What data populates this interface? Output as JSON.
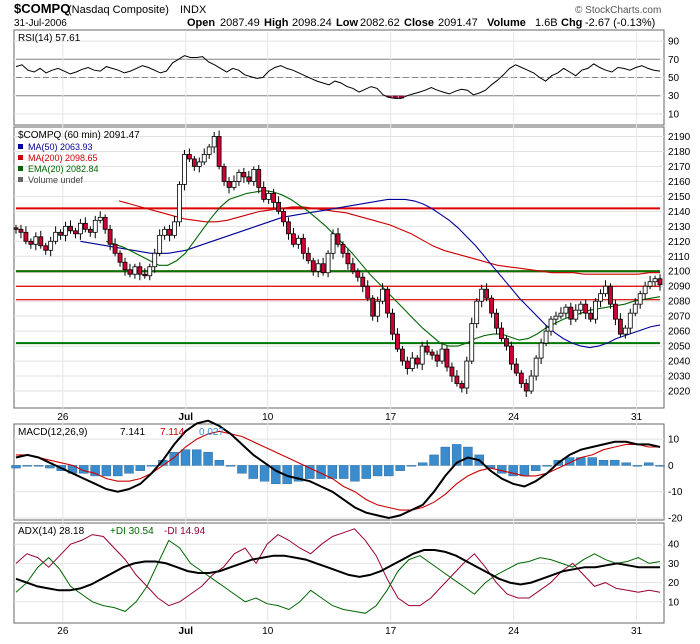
{
  "header": {
    "symbol": "$COMPQ",
    "name": "(Nasdaq Composite)",
    "exchange": "INDX",
    "date": "31-Jul-2006",
    "open_label": "Open",
    "open": "2087.49",
    "high_label": "High",
    "high": "2098.24",
    "low_label": "Low",
    "low": "2082.62",
    "close_label": "Close",
    "close": "2091.47",
    "volume_label": "Volume",
    "volume": "1.6B",
    "chg_label": "Chg",
    "chg": "-2.67 (-0.13%)",
    "copyright": "© StockCharts.com"
  },
  "colors": {
    "up_candle": "#ffffff",
    "down_candle": "#cc0033",
    "ma50": "#000099",
    "ma200": "#cc0000",
    "ema20": "#006600",
    "support_red": "#dd0000",
    "support_green": "#007700",
    "macd_hist": "#3a8ccc",
    "macd_line": "#000000",
    "macd_signal": "#cc0000",
    "adx": "#000000",
    "plus_di": "#006600",
    "minus_di": "#990033",
    "rsi_line": "#000000",
    "rsi_over": "#990033"
  },
  "chart_data": [
    {
      "type": "line",
      "panel": "rsi",
      "legend": "RSI(14) 57.61",
      "ylim": [
        0,
        100
      ],
      "yticks": [
        "90",
        "70",
        "50",
        "30",
        "10"
      ],
      "reference_lines": [
        70,
        50,
        30
      ],
      "last_value": 57.61,
      "values": [
        62,
        64,
        58,
        56,
        60,
        55,
        58,
        60,
        57,
        54,
        56,
        59,
        61,
        58,
        57,
        62,
        60,
        58,
        55,
        57,
        60,
        63,
        61,
        58,
        55,
        57,
        66,
        70,
        74,
        72,
        72,
        73,
        67,
        64,
        60,
        56,
        60,
        58,
        53,
        51,
        49,
        50,
        57,
        61,
        63,
        60,
        58,
        55,
        52,
        49,
        46,
        44,
        42,
        46,
        44,
        40,
        38,
        34,
        37,
        40,
        38,
        31,
        28,
        27,
        27,
        30,
        32,
        34,
        36,
        39,
        36,
        34,
        32,
        35,
        37,
        36,
        31,
        33,
        36,
        42,
        47,
        53,
        60,
        64,
        61,
        58,
        55,
        50,
        46,
        52,
        55,
        60,
        56,
        52,
        58,
        60,
        65,
        61,
        58,
        56,
        61,
        60,
        58,
        61,
        63,
        60,
        58,
        57
      ]
    },
    {
      "type": "line",
      "panel": "price",
      "legend": [
        "$COMPQ (60 min) 2091.47",
        "MA(50) 2063.93",
        "MA(200) 2098.65",
        "EMA(20) 2082.84",
        "Volume undef"
      ],
      "ylim": [
        2010,
        2195
      ],
      "yticks": [
        "2190",
        "2180",
        "2170",
        "2160",
        "2150",
        "2140",
        "2130",
        "2120",
        "2110",
        "2100",
        "2090",
        "2080",
        "2070",
        "2060",
        "2050",
        "2040",
        "2030",
        "2020"
      ],
      "x_tick_labels": [
        {
          "label": "26",
          "index": 8
        },
        {
          "label": "Jul",
          "index": 29
        },
        {
          "label": "10",
          "index": 43
        },
        {
          "label": "17",
          "index": 64
        },
        {
          "label": "24",
          "index": 85
        },
        {
          "label": "31",
          "index": 106
        }
      ],
      "horizontal_lines": [
        {
          "value": 2142,
          "color": "red"
        },
        {
          "value": 2100,
          "color": "red"
        },
        {
          "value": 2100,
          "color": "green"
        },
        {
          "value": 2090,
          "color": "red"
        },
        {
          "value": 2081,
          "color": "red"
        },
        {
          "value": 2052,
          "color": "red"
        },
        {
          "value": 2052,
          "color": "green"
        }
      ],
      "close": [
        2128,
        2126,
        2120,
        2118,
        2123,
        2117,
        2114,
        2120,
        2126,
        2124,
        2130,
        2127,
        2125,
        2132,
        2128,
        2126,
        2134,
        2136,
        2128,
        2118,
        2112,
        2106,
        2101,
        2098,
        2103,
        2098,
        2097,
        2103,
        2112,
        2124,
        2128,
        2124,
        2133,
        2158,
        2178,
        2175,
        2170,
        2173,
        2178,
        2183,
        2190,
        2170,
        2160,
        2156,
        2160,
        2166,
        2163,
        2160,
        2168,
        2156,
        2148,
        2152,
        2146,
        2140,
        2133,
        2125,
        2118,
        2122,
        2112,
        2107,
        2100,
        2105,
        2099,
        2112,
        2125,
        2118,
        2112,
        2105,
        2100,
        2096,
        2090,
        2082,
        2070,
        2080,
        2088,
        2072,
        2058,
        2048,
        2040,
        2035,
        2042,
        2038,
        2050,
        2046,
        2044,
        2040,
        2048,
        2036,
        2030,
        2025,
        2022,
        2040,
        2065,
        2080,
        2088,
        2082,
        2072,
        2062,
        2055,
        2050,
        2038,
        2032,
        2025,
        2020,
        2030,
        2042,
        2052,
        2060,
        2068,
        2070,
        2072,
        2076,
        2068,
        2074,
        2078,
        2072,
        2068,
        2080,
        2085,
        2090,
        2078,
        2068,
        2058,
        2062,
        2072,
        2078,
        2085,
        2090,
        2093,
        2095,
        2091
      ],
      "ma50": [
        2120,
        2119,
        2118,
        2117,
        2116,
        2115,
        2114,
        2113,
        2112,
        2112,
        2112,
        2113,
        2114,
        2116,
        2118,
        2120,
        2122,
        2124,
        2126,
        2128,
        2130,
        2132,
        2134,
        2136,
        2137,
        2138,
        2139,
        2140,
        2141,
        2142,
        2143,
        2144,
        2145,
        2146,
        2147,
        2148,
        2148,
        2148,
        2147,
        2145,
        2142,
        2138,
        2134,
        2129,
        2123,
        2117,
        2110,
        2103,
        2096,
        2089,
        2082,
        2076,
        2070,
        2064,
        2059,
        2055,
        2052,
        2050,
        2049,
        2050,
        2052,
        2055,
        2057,
        2059,
        2061,
        2063,
        2064
      ],
      "ma200": [
        2147,
        2145,
        2143,
        2141,
        2139,
        2137,
        2135,
        2134,
        2133,
        2133,
        2134,
        2136,
        2138,
        2140,
        2141,
        2142,
        2143,
        2143,
        2142,
        2141,
        2140,
        2139,
        2137,
        2135,
        2133,
        2131,
        2128,
        2125,
        2121,
        2117,
        2114,
        2112,
        2110,
        2108,
        2106,
        2104,
        2103,
        2102,
        2101,
        2100,
        2099,
        2099,
        2099,
        2098,
        2098,
        2098,
        2098,
        2098,
        2098,
        2099,
        2099
      ],
      "ema20": [
        2120,
        2118,
        2116,
        2113,
        2110,
        2107,
        2104,
        2104,
        2107,
        2112,
        2120,
        2128,
        2136,
        2143,
        2148,
        2150,
        2152,
        2153,
        2154,
        2153,
        2151,
        2148,
        2144,
        2140,
        2135,
        2130,
        2124,
        2118,
        2112,
        2105,
        2098,
        2092,
        2086,
        2080,
        2074,
        2068,
        2062,
        2057,
        2052,
        2050,
        2050,
        2052,
        2055,
        2057,
        2058,
        2058,
        2056,
        2054,
        2055,
        2058,
        2062,
        2065,
        2068,
        2070,
        2072,
        2074,
        2075,
        2076,
        2077,
        2078,
        2080,
        2081,
        2082,
        2083
      ]
    },
    {
      "type": "line",
      "panel": "macd",
      "legend": [
        "MACD(12,26,9)",
        "7.141",
        "7.114",
        "0.027"
      ],
      "ylim": [
        -20,
        15
      ],
      "yticks": [
        "10",
        "0",
        "-10",
        "-20"
      ],
      "macd": [
        3,
        4,
        3,
        1,
        -1,
        -3,
        -5,
        -7,
        -9,
        -10,
        -9,
        -7,
        -3,
        2,
        8,
        13,
        16,
        17,
        15,
        12,
        8,
        4,
        1,
        -2,
        -4,
        -5,
        -6,
        -8,
        -10,
        -13,
        -16,
        -18,
        -19,
        -20,
        -19,
        -17,
        -15,
        -10,
        -4,
        1,
        3,
        2,
        -2,
        -5,
        -7,
        -8,
        -6,
        -3,
        1,
        4,
        6,
        7,
        8,
        9,
        9,
        8,
        8,
        7
      ],
      "signal": [
        4,
        4,
        3,
        2,
        1,
        0,
        -2,
        -3,
        -5,
        -6,
        -6,
        -5,
        -3,
        0,
        3,
        7,
        10,
        12,
        13,
        12,
        11,
        9,
        7,
        5,
        3,
        1,
        -1,
        -3,
        -5,
        -8,
        -10,
        -13,
        -15,
        -16,
        -17,
        -17,
        -16,
        -14,
        -11,
        -7,
        -4,
        -2,
        -1,
        -2,
        -3,
        -4,
        -4,
        -3,
        -1,
        1,
        3,
        4,
        6,
        7,
        8,
        8,
        7,
        7
      ],
      "histogram": [
        -1,
        0,
        0,
        -1,
        -2,
        -3,
        -3,
        -4,
        -4,
        -4,
        -3,
        -2,
        0,
        2,
        5,
        6,
        6,
        5,
        2,
        0,
        -3,
        -5,
        -6,
        -7,
        -7,
        -6,
        -5,
        -5,
        -5,
        -5,
        -6,
        -5,
        -4,
        -4,
        -2,
        0,
        1,
        4,
        7,
        8,
        7,
        4,
        -1,
        -3,
        -4,
        -4,
        -2,
        0,
        2,
        3,
        3,
        3,
        2,
        2,
        1,
        0,
        1,
        0
      ]
    },
    {
      "type": "line",
      "panel": "adx",
      "legend": [
        "ADX(14) 28.18",
        "+DI 30.54",
        "-DI 14.94"
      ],
      "ylim": [
        0,
        50
      ],
      "yticks": [
        "40",
        "30",
        "20",
        "10"
      ],
      "adx": [
        22,
        20,
        18,
        17,
        16,
        16,
        17,
        19,
        22,
        25,
        28,
        30,
        31,
        31,
        30,
        28,
        26,
        25,
        25,
        26,
        28,
        30,
        32,
        33,
        34,
        34,
        33,
        32,
        30,
        28,
        26,
        24,
        23,
        24,
        26,
        29,
        32,
        35,
        37,
        37,
        36,
        34,
        31,
        28,
        25,
        22,
        20,
        19,
        20,
        22,
        24,
        26,
        27,
        28,
        28,
        29,
        30,
        29,
        28,
        28,
        28
      ],
      "plus_di": [
        15,
        20,
        28,
        33,
        27,
        18,
        14,
        10,
        8,
        7,
        5,
        10,
        18,
        30,
        42,
        38,
        30,
        26,
        22,
        18,
        14,
        10,
        12,
        9,
        8,
        6,
        10,
        16,
        12,
        8,
        6,
        5,
        4,
        8,
        16,
        26,
        32,
        34,
        30,
        26,
        22,
        18,
        14,
        20,
        24,
        27,
        30,
        31,
        33,
        32,
        30,
        28,
        32,
        35,
        32,
        30,
        31,
        33,
        30,
        31
      ],
      "minus_di": [
        30,
        35,
        33,
        28,
        34,
        40,
        42,
        45,
        44,
        38,
        32,
        24,
        18,
        12,
        8,
        10,
        14,
        18,
        24,
        28,
        35,
        38,
        30,
        40,
        45,
        42,
        38,
        35,
        40,
        44,
        46,
        48,
        42,
        34,
        22,
        12,
        8,
        8,
        12,
        18,
        24,
        30,
        35,
        28,
        20,
        14,
        12,
        12,
        16,
        20,
        26,
        30,
        24,
        18,
        20,
        17,
        16,
        15,
        16,
        15
      ]
    }
  ]
}
